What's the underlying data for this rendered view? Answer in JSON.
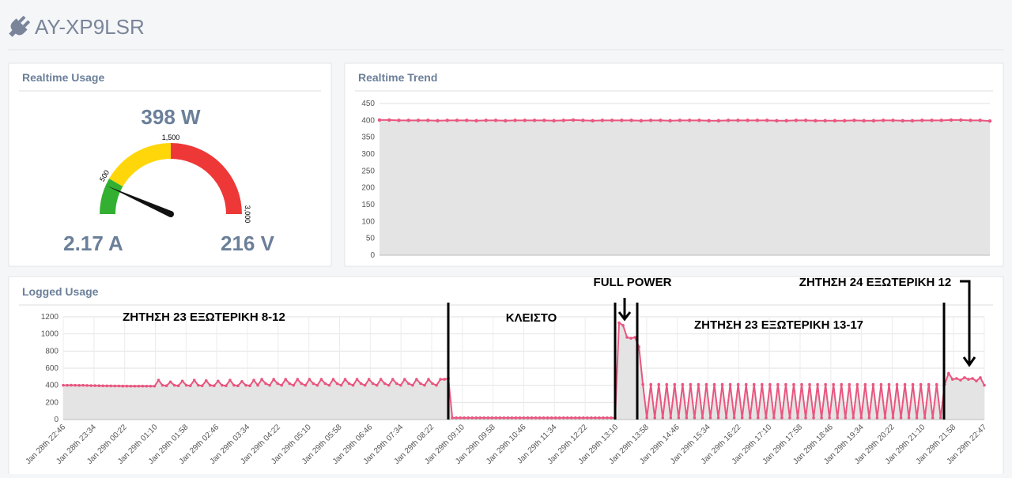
{
  "header": {
    "title": "AY-XP9LSR"
  },
  "realtime_usage": {
    "title": "Realtime Usage",
    "gauge": {
      "value": 398,
      "value_label": "398 W",
      "min": 0,
      "max": 3000,
      "bands": [
        {
          "from": 0,
          "to": 500,
          "color": "#33b032"
        },
        {
          "from": 500,
          "to": 1500,
          "color": "#ffd60a"
        },
        {
          "from": 1500,
          "to": 3000,
          "color": "#ee3838"
        }
      ],
      "ticks": [
        500,
        {
          "value": 1500,
          "label": "1,500"
        },
        {
          "value": 3000,
          "label": "3,000"
        }
      ]
    },
    "current": "2.17 A",
    "voltage": "216 V"
  },
  "realtime_trend": {
    "title": "Realtime Trend",
    "type": "line",
    "color": "#e9567f",
    "ylim": [
      0,
      450
    ],
    "yticks": [
      0,
      50,
      100,
      150,
      200,
      250,
      300,
      350,
      400,
      450
    ],
    "values": [
      401,
      401,
      400,
      400,
      400,
      400,
      399,
      400,
      400,
      400,
      399,
      400,
      400,
      399,
      400,
      400,
      400,
      400,
      399,
      400,
      401,
      400,
      399,
      400,
      400,
      400,
      400,
      399,
      400,
      400,
      399,
      400,
      400,
      400,
      399,
      399,
      400,
      400,
      400,
      400,
      400,
      399,
      399,
      400,
      400,
      399,
      399,
      399,
      399,
      400,
      399,
      399,
      400,
      400,
      399,
      399,
      400,
      400,
      400,
      401,
      401,
      400,
      400,
      398
    ]
  },
  "logged_usage": {
    "title": "Logged Usage",
    "type": "line",
    "color": "#e9567f",
    "ylim": [
      0,
      1200
    ],
    "yticks": [
      0,
      200,
      400,
      600,
      800,
      1000,
      1200
    ],
    "xlabels": [
      "Jan 28th 22:46",
      "Jan 28th 23:34",
      "Jan 29th 00:22",
      "Jan 29th 01:10",
      "Jan 29th 01:58",
      "Jan 29th 02:46",
      "Jan 29th 03:34",
      "Jan 29th 04:22",
      "Jan 29th 05:10",
      "Jan 29th 05:58",
      "Jan 29th 06:46",
      "Jan 29th 07:34",
      "Jan 29th 08:22",
      "Jan 29th 09:10",
      "Jan 29th 09:58",
      "Jan 29th 10:46",
      "Jan 29th 11:34",
      "Jan 29th 12:22",
      "Jan 29th 13:10",
      "Jan 29th 13:58",
      "Jan 29th 14:46",
      "Jan 29th 15:34",
      "Jan 29th 16:22",
      "Jan 29th 17:10",
      "Jan 29th 17:58",
      "Jan 29th 18:46",
      "Jan 29th 19:34",
      "Jan 29th 20:22",
      "Jan 29th 21:10",
      "Jan 29th 21:58",
      "Jan 29th 22:47"
    ],
    "values": [
      400,
      400,
      401,
      400,
      399,
      400,
      398,
      397,
      396,
      395,
      394,
      393,
      393,
      392,
      392,
      391,
      391,
      390,
      390,
      390,
      391,
      390,
      390,
      390,
      460,
      400,
      395,
      440,
      400,
      395,
      450,
      400,
      395,
      460,
      400,
      395,
      455,
      400,
      395,
      450,
      400,
      395,
      460,
      400,
      395,
      445,
      400,
      395,
      460,
      400,
      470,
      420,
      400,
      470,
      420,
      400,
      470,
      420,
      400,
      470,
      420,
      400,
      470,
      420,
      400,
      470,
      420,
      400,
      470,
      420,
      400,
      470,
      420,
      400,
      470,
      420,
      400,
      470,
      420,
      400,
      470,
      420,
      400,
      470,
      420,
      400,
      470,
      420,
      400,
      470,
      420,
      400,
      470,
      420,
      400,
      470,
      470,
      480,
      20,
      20,
      20,
      20,
      20,
      20,
      20,
      20,
      20,
      20,
      20,
      20,
      20,
      20,
      20,
      20,
      20,
      20,
      20,
      20,
      20,
      20,
      20,
      20,
      20,
      20,
      20,
      20,
      20,
      20,
      20,
      20,
      20,
      20,
      20,
      20,
      20,
      20,
      20,
      20,
      20,
      20,
      1130,
      1100,
      960,
      950,
      960,
      850,
      410,
      20,
      410,
      20,
      410,
      20,
      410,
      20,
      410,
      20,
      410,
      20,
      410,
      20,
      410,
      20,
      410,
      20,
      410,
      20,
      410,
      20,
      410,
      20,
      410,
      20,
      410,
      20,
      410,
      20,
      410,
      20,
      410,
      20,
      410,
      20,
      410,
      20,
      410,
      20,
      410,
      20,
      410,
      20,
      410,
      20,
      410,
      20,
      410,
      20,
      410,
      20,
      410,
      20,
      410,
      20,
      410,
      20,
      410,
      20,
      410,
      20,
      410,
      20,
      410,
      20,
      410,
      20,
      410,
      20,
      410,
      20,
      410,
      20,
      410,
      20,
      410,
      540,
      470,
      480,
      460,
      490,
      470,
      480,
      450,
      490,
      400
    ],
    "annotations": [
      "ΖΗΤΗΣΗ 23  ΕΞΩΤΕΡΙΚΗ 8-12",
      "ΚΛΕΙΣΤΟ",
      "FULL POWER",
      "ΖΗΤΗΣΗ 23 ΕΞΩΤΕΡΙΚΗ 13-17",
      "ΖΗΤΗΣΗ 24 ΕΞΩΤΕΡΙΚΗ 12"
    ]
  }
}
